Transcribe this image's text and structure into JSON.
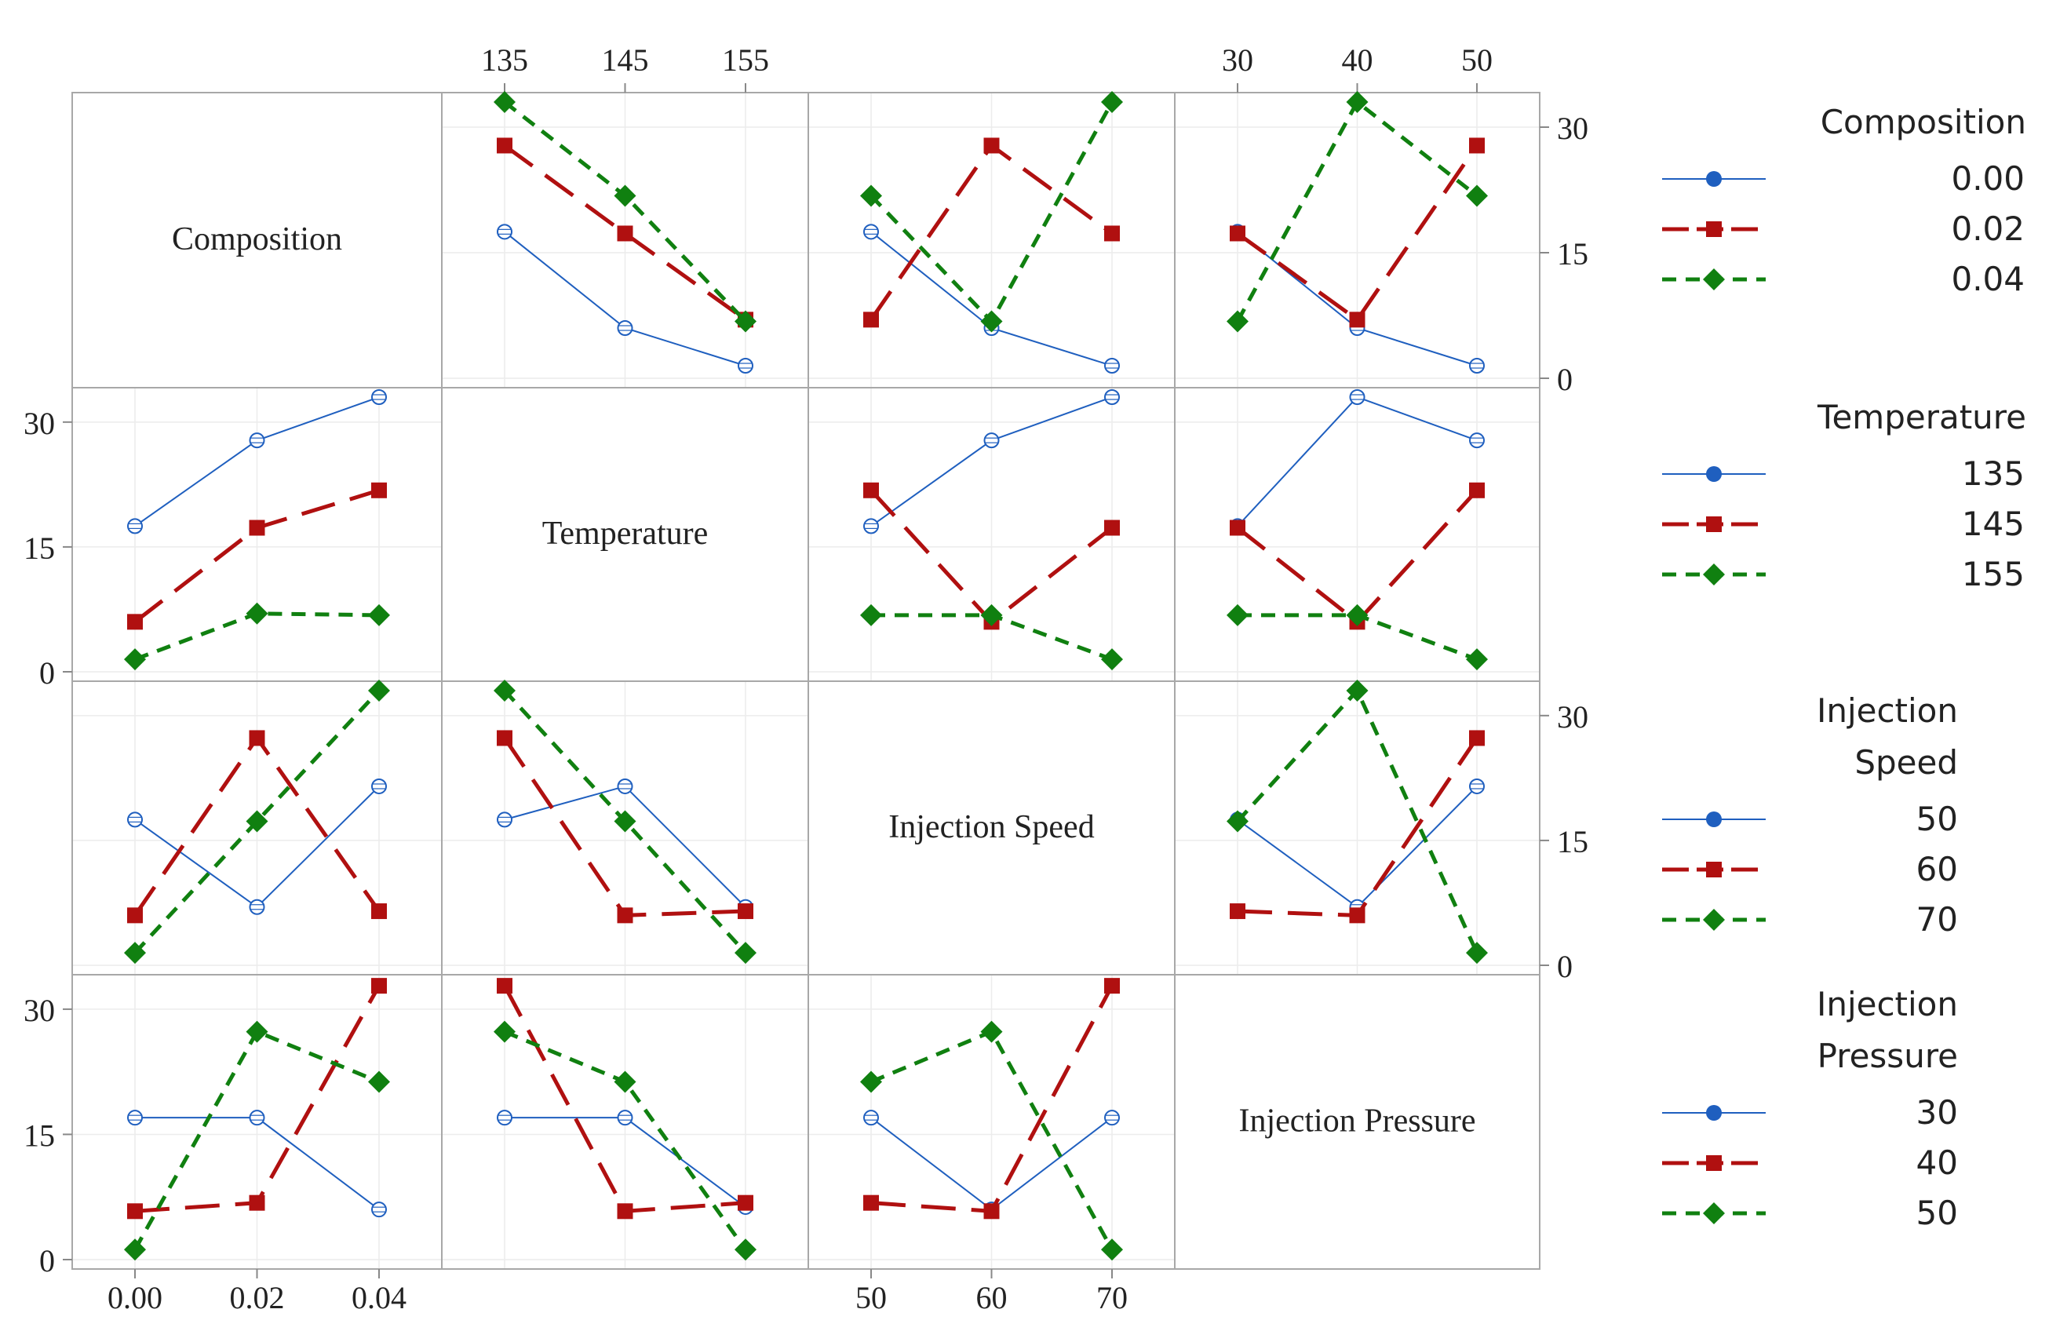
{
  "chart_data": {
    "type": "line",
    "title": "",
    "figure_type": "interaction-plot-matrix",
    "grid": true,
    "legend_position": "right",
    "y_ticks": [
      0,
      15,
      30
    ],
    "y_range": [
      0,
      33
    ],
    "colors": {
      "level1": "#1f5fbf",
      "level2": "#b01010",
      "level3": "#108010"
    },
    "factors": [
      {
        "name": "Composition",
        "legend_title": [
          "Composition"
        ],
        "levels": [
          "0.00",
          "0.02",
          "0.04"
        ],
        "tick_labels": [
          "0.00",
          "0.02",
          "0.04"
        ],
        "x": [
          0.0,
          0.02,
          0.04
        ]
      },
      {
        "name": "Temperature",
        "legend_title": [
          "Temperature"
        ],
        "levels": [
          "135",
          "145",
          "155"
        ],
        "tick_labels": [
          "135",
          "145",
          "155"
        ],
        "x": [
          135,
          145,
          155
        ]
      },
      {
        "name": "Injection Speed",
        "legend_title": [
          "Injection",
          "Speed"
        ],
        "levels": [
          "50",
          "60",
          "70"
        ],
        "tick_labels": [
          "50",
          "60",
          "70"
        ],
        "x": [
          50,
          60,
          70
        ]
      },
      {
        "name": "Injection Pressure",
        "legend_title": [
          "Injection",
          "Pressure"
        ],
        "levels": [
          "30",
          "40",
          "50"
        ],
        "tick_labels": [
          "30",
          "40",
          "50"
        ],
        "x": [
          30,
          40,
          50
        ]
      }
    ],
    "panels": [
      {
        "row": 0,
        "col": 1,
        "series": [
          [
            17.5,
            6,
            1.5
          ],
          [
            27.8,
            17.3,
            7
          ],
          [
            33,
            21.8,
            6.8
          ]
        ]
      },
      {
        "row": 0,
        "col": 2,
        "series": [
          [
            17.5,
            6,
            1.5
          ],
          [
            7,
            27.8,
            17.3
          ],
          [
            21.8,
            6.8,
            33
          ]
        ]
      },
      {
        "row": 0,
        "col": 3,
        "series": [
          [
            17.5,
            6,
            1.5
          ],
          [
            17.3,
            7,
            27.8
          ],
          [
            6.8,
            33,
            21.8
          ]
        ]
      },
      {
        "row": 1,
        "col": 0,
        "series": [
          [
            17.5,
            27.8,
            33
          ],
          [
            6,
            17.3,
            21.8
          ],
          [
            1.5,
            7,
            6.8
          ]
        ]
      },
      {
        "row": 1,
        "col": 2,
        "series": [
          [
            17.5,
            27.8,
            33
          ],
          [
            21.8,
            6,
            17.3
          ],
          [
            6.8,
            6.8,
            1.5
          ]
        ]
      },
      {
        "row": 1,
        "col": 3,
        "series": [
          [
            17.5,
            33,
            27.8
          ],
          [
            17.3,
            6,
            21.8
          ],
          [
            6.8,
            6.8,
            1.5
          ]
        ]
      },
      {
        "row": 2,
        "col": 0,
        "series": [
          [
            17.5,
            7,
            21.5
          ],
          [
            6,
            27.3,
            6.5
          ],
          [
            1.5,
            17.3,
            33
          ]
        ]
      },
      {
        "row": 2,
        "col": 1,
        "series": [
          [
            17.5,
            21.5,
            7
          ],
          [
            27.3,
            6,
            6.5
          ],
          [
            33,
            17.3,
            1.5
          ]
        ]
      },
      {
        "row": 2,
        "col": 3,
        "series": [
          [
            17.5,
            7,
            21.5
          ],
          [
            6.5,
            6,
            27.3
          ],
          [
            17.3,
            33,
            1.5
          ]
        ]
      },
      {
        "row": 3,
        "col": 0,
        "series": [
          [
            17,
            17,
            6
          ],
          [
            5.8,
            6.8,
            32.8
          ],
          [
            1.2,
            27.3,
            21.3
          ]
        ]
      },
      {
        "row": 3,
        "col": 1,
        "series": [
          [
            17,
            17,
            6.3
          ],
          [
            32.8,
            5.8,
            6.8
          ],
          [
            27.3,
            21.3,
            1.2
          ]
        ]
      },
      {
        "row": 3,
        "col": 2,
        "series": [
          [
            17,
            6,
            17
          ],
          [
            6.8,
            5.8,
            32.8
          ],
          [
            21.3,
            27.3,
            1.2
          ]
        ]
      }
    ]
  }
}
